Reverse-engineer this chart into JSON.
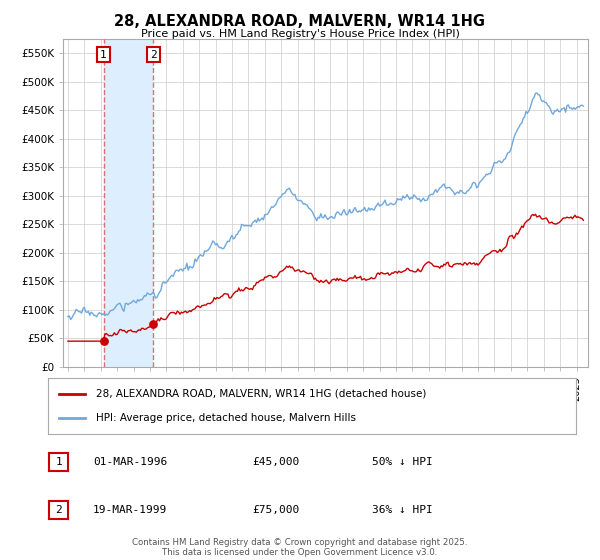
{
  "title": "28, ALEXANDRA ROAD, MALVERN, WR14 1HG",
  "subtitle": "Price paid vs. HM Land Registry's House Price Index (HPI)",
  "legend_line1": "28, ALEXANDRA ROAD, MALVERN, WR14 1HG (detached house)",
  "legend_line2": "HPI: Average price, detached house, Malvern Hills",
  "footer": "Contains HM Land Registry data © Crown copyright and database right 2025.\nThis data is licensed under the Open Government Licence v3.0.",
  "purchase1_date": "01-MAR-1996",
  "purchase1_price": 45000,
  "purchase1_label": "50% ↓ HPI",
  "purchase1_year": 1996.17,
  "purchase2_date": "19-MAR-1999",
  "purchase2_price": 75000,
  "purchase2_label": "36% ↓ HPI",
  "purchase2_year": 1999.21,
  "xlim": [
    1993.7,
    2025.7
  ],
  "ylim": [
    0,
    575000
  ],
  "yticks": [
    0,
    50000,
    100000,
    150000,
    200000,
    250000,
    300000,
    350000,
    400000,
    450000,
    500000,
    550000
  ],
  "ytick_labels": [
    "£0",
    "£50K",
    "£100K",
    "£150K",
    "£200K",
    "£250K",
    "£300K",
    "£350K",
    "£400K",
    "£450K",
    "£500K",
    "£550K"
  ],
  "hpi_color": "#6fa8dc",
  "price_color": "#cc0000",
  "dot_color": "#cc0000",
  "background_color": "#ffffff",
  "grid_color": "#cccccc",
  "shade_color": "#ddeeff",
  "vline_color": "#e06060"
}
